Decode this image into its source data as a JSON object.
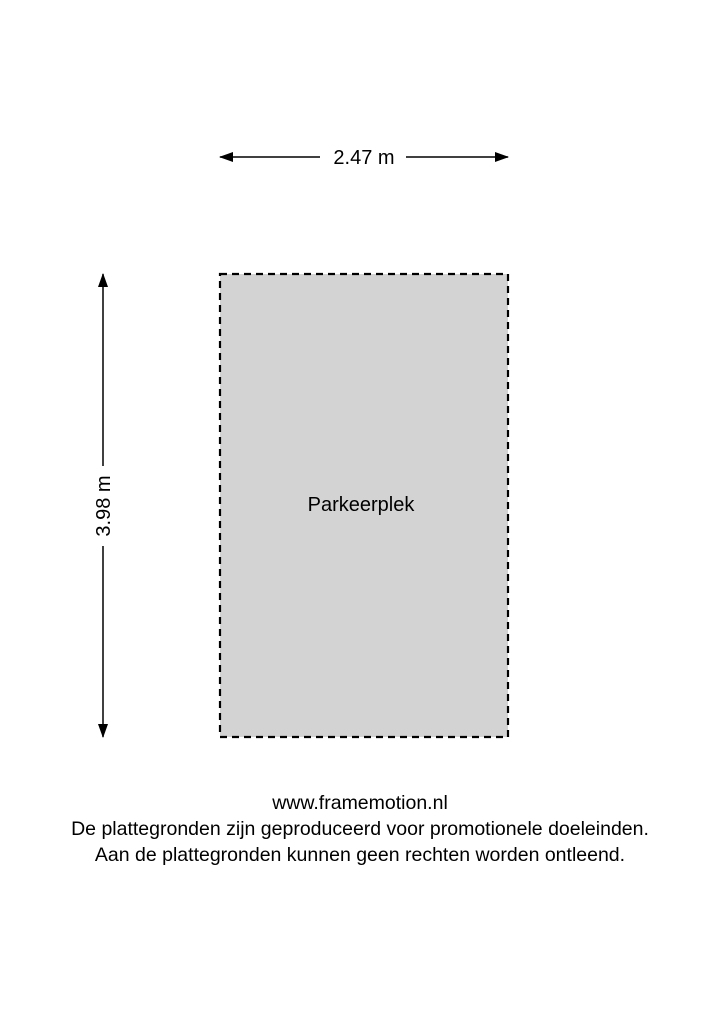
{
  "plan": {
    "room_label": "Parkeerplek",
    "width_label": "2.47 m",
    "height_label": "3.98 m",
    "room_fill": "#d3d3d3",
    "line_color": "#000000"
  },
  "footer": {
    "website": "www.framemotion.nl",
    "disclaimer_1": "De plattegronden zijn geproduceerd voor promotionele doeleinden.",
    "disclaimer_2": "Aan de plattegronden kunnen geen rechten worden ontleend."
  }
}
